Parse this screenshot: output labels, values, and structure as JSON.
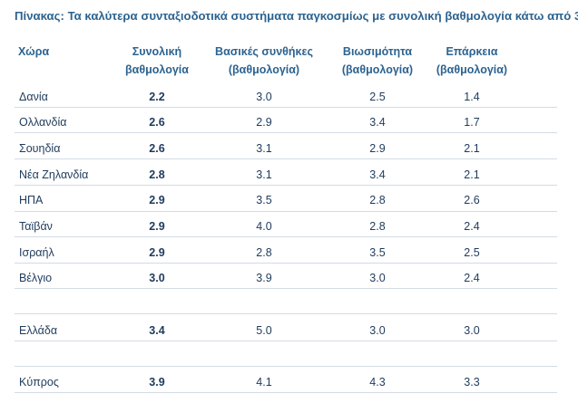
{
  "title": "Πίνακας: Τα καλύτερα συνταξιοδοτικά συστήματα παγκοσμίως με συνολική βαθμολογία κάτω από 3",
  "headers": {
    "country": "Χώρα",
    "total_line1": "Συνολική",
    "total_line2": "βαθμολογία",
    "basic_line1": "Βασικές συνθήκες",
    "basic_line2": "(βαθμολογία)",
    "sustain_line1": "Βιωσιμότητα",
    "sustain_line2": "(βαθμολογία)",
    "adequacy_line1": "Επάρκεια",
    "adequacy_line2": "(βαθμολογία)"
  },
  "rows": [
    {
      "country": "Δανία",
      "total": "2.2",
      "basic": "3.0",
      "sustainability": "2.5",
      "adequacy": "1.4"
    },
    {
      "country": "Ολλανδία",
      "total": "2.6",
      "basic": "2.9",
      "sustainability": "3.4",
      "adequacy": "1.7"
    },
    {
      "country": "Σουηδία",
      "total": "2.6",
      "basic": "3.1",
      "sustainability": "2.9",
      "adequacy": "2.1"
    },
    {
      "country": "Νέα Ζηλανδία",
      "total": "2.8",
      "basic": "3.1",
      "sustainability": "3.4",
      "adequacy": "2.1"
    },
    {
      "country": "ΗΠΑ",
      "total": "2.9",
      "basic": "3.5",
      "sustainability": "2.8",
      "adequacy": "2.6"
    },
    {
      "country": "Ταϊβάν",
      "total": "2.9",
      "basic": "4.0",
      "sustainability": "2.8",
      "adequacy": "2.4"
    },
    {
      "country": "Ισραήλ",
      "total": "2.9",
      "basic": "2.8",
      "sustainability": "3.5",
      "adequacy": "2.5"
    },
    {
      "country": "Βέλγιο",
      "total": "3.0",
      "basic": "3.9",
      "sustainability": "3.0",
      "adequacy": "2.4"
    },
    {
      "country": "Ελλάδα",
      "total": "3.4",
      "basic": "5.0",
      "sustainability": "3.0",
      "adequacy": "3.0"
    },
    {
      "country": "Κύπρος",
      "total": "3.9",
      "basic": "4.1",
      "sustainability": "4.3",
      "adequacy": "3.3"
    }
  ],
  "colors": {
    "title": "#2c6390",
    "header": "#2c6390",
    "body_text": "#1f3b5c",
    "rule": "#d3dbe4"
  }
}
